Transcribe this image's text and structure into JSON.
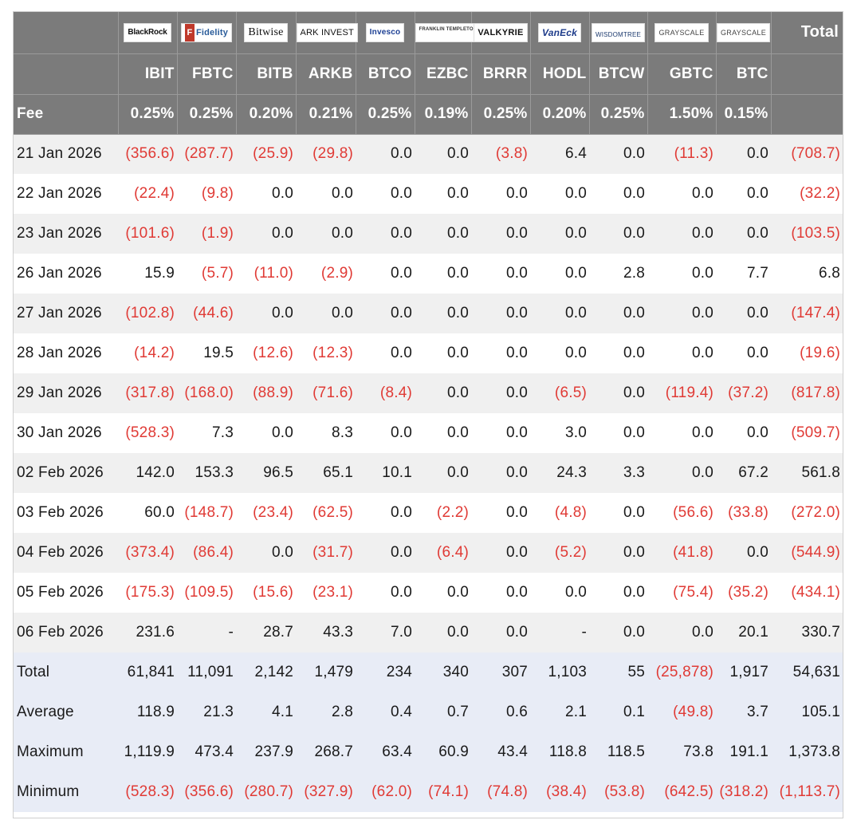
{
  "header": {
    "total_label": "Total",
    "fee_label": "Fee",
    "providers": [
      {
        "name": "BlackRock",
        "icon": "blackrock-logo"
      },
      {
        "name": "Fidelity",
        "icon": "fidelity-logo"
      },
      {
        "name": "Bitwise",
        "icon": "bitwise-logo"
      },
      {
        "name": "ARK INVEST",
        "icon": "ark-invest-logo"
      },
      {
        "name": "Invesco",
        "icon": "invesco-logo"
      },
      {
        "name": "FRANKLIN TEMPLETON",
        "icon": "franklin-templeton-logo"
      },
      {
        "name": "VALKYRIE",
        "icon": "valkyrie-logo"
      },
      {
        "name": "VanEck",
        "icon": "vaneck-logo"
      },
      {
        "name": "WISDOMTREE",
        "icon": "wisdomtree-logo"
      },
      {
        "name": "GRAYSCALE",
        "icon": "grayscale-logo"
      },
      {
        "name": "GRAYSCALE",
        "icon": "grayscale-logo"
      }
    ],
    "tickers": [
      "IBIT",
      "FBTC",
      "BITB",
      "ARKB",
      "BTCO",
      "EZBC",
      "BRRR",
      "HODL",
      "BTCW",
      "GBTC",
      "BTC"
    ],
    "fees": [
      "0.25%",
      "0.25%",
      "0.20%",
      "0.21%",
      "0.25%",
      "0.19%",
      "0.25%",
      "0.20%",
      "0.25%",
      "1.50%",
      "0.15%"
    ]
  },
  "rows": [
    {
      "date": "21 Jan 2026",
      "values": [
        "(356.6)",
        "(287.7)",
        "(25.9)",
        "(29.8)",
        "0.0",
        "0.0",
        "(3.8)",
        "6.4",
        "0.0",
        "(11.3)",
        "0.0",
        "(708.7)"
      ]
    },
    {
      "date": "22 Jan 2026",
      "values": [
        "(22.4)",
        "(9.8)",
        "0.0",
        "0.0",
        "0.0",
        "0.0",
        "0.0",
        "0.0",
        "0.0",
        "0.0",
        "0.0",
        "(32.2)"
      ]
    },
    {
      "date": "23 Jan 2026",
      "values": [
        "(101.6)",
        "(1.9)",
        "0.0",
        "0.0",
        "0.0",
        "0.0",
        "0.0",
        "0.0",
        "0.0",
        "0.0",
        "0.0",
        "(103.5)"
      ]
    },
    {
      "date": "26 Jan 2026",
      "values": [
        "15.9",
        "(5.7)",
        "(11.0)",
        "(2.9)",
        "0.0",
        "0.0",
        "0.0",
        "0.0",
        "2.8",
        "0.0",
        "7.7",
        "6.8"
      ]
    },
    {
      "date": "27 Jan 2026",
      "values": [
        "(102.8)",
        "(44.6)",
        "0.0",
        "0.0",
        "0.0",
        "0.0",
        "0.0",
        "0.0",
        "0.0",
        "0.0",
        "0.0",
        "(147.4)"
      ]
    },
    {
      "date": "28 Jan 2026",
      "values": [
        "(14.2)",
        "19.5",
        "(12.6)",
        "(12.3)",
        "0.0",
        "0.0",
        "0.0",
        "0.0",
        "0.0",
        "0.0",
        "0.0",
        "(19.6)"
      ]
    },
    {
      "date": "29 Jan 2026",
      "values": [
        "(317.8)",
        "(168.0)",
        "(88.9)",
        "(71.6)",
        "(8.4)",
        "0.0",
        "0.0",
        "(6.5)",
        "0.0",
        "(119.4)",
        "(37.2)",
        "(817.8)"
      ]
    },
    {
      "date": "30 Jan 2026",
      "values": [
        "(528.3)",
        "7.3",
        "0.0",
        "8.3",
        "0.0",
        "0.0",
        "0.0",
        "3.0",
        "0.0",
        "0.0",
        "0.0",
        "(509.7)"
      ]
    },
    {
      "date": "02 Feb 2026",
      "values": [
        "142.0",
        "153.3",
        "96.5",
        "65.1",
        "10.1",
        "0.0",
        "0.0",
        "24.3",
        "3.3",
        "0.0",
        "67.2",
        "561.8"
      ]
    },
    {
      "date": "03 Feb 2026",
      "values": [
        "60.0",
        "(148.7)",
        "(23.4)",
        "(62.5)",
        "0.0",
        "(2.2)",
        "0.0",
        "(4.8)",
        "0.0",
        "(56.6)",
        "(33.8)",
        "(272.0)"
      ]
    },
    {
      "date": "04 Feb 2026",
      "values": [
        "(373.4)",
        "(86.4)",
        "0.0",
        "(31.7)",
        "0.0",
        "(6.4)",
        "0.0",
        "(5.2)",
        "0.0",
        "(41.8)",
        "0.0",
        "(544.9)"
      ]
    },
    {
      "date": "05 Feb 2026",
      "values": [
        "(175.3)",
        "(109.5)",
        "(15.6)",
        "(23.1)",
        "0.0",
        "0.0",
        "0.0",
        "0.0",
        "0.0",
        "(75.4)",
        "(35.2)",
        "(434.1)"
      ]
    },
    {
      "date": "06 Feb 2026",
      "values": [
        "231.6",
        "-",
        "28.7",
        "43.3",
        "7.0",
        "0.0",
        "0.0",
        "-",
        "0.0",
        "0.0",
        "20.1",
        "330.7"
      ]
    }
  ],
  "stats": [
    {
      "label": "Total",
      "values": [
        "61,841",
        "11,091",
        "2,142",
        "1,479",
        "234",
        "340",
        "307",
        "1,103",
        "55",
        "(25,878)",
        "1,917",
        "54,631"
      ]
    },
    {
      "label": "Average",
      "values": [
        "118.9",
        "21.3",
        "4.1",
        "2.8",
        "0.4",
        "0.7",
        "0.6",
        "2.1",
        "0.1",
        "(49.8)",
        "3.7",
        "105.1"
      ]
    },
    {
      "label": "Maximum",
      "values": [
        "1,119.9",
        "473.4",
        "237.9",
        "268.7",
        "63.4",
        "60.9",
        "43.4",
        "118.8",
        "118.5",
        "73.8",
        "191.1",
        "1,373.8"
      ]
    },
    {
      "label": "Minimum",
      "values": [
        "(528.3)",
        "(356.6)",
        "(280.7)",
        "(327.9)",
        "(62.0)",
        "(74.1)",
        "(74.8)",
        "(38.4)",
        "(53.8)",
        "(642.5)",
        "(318.2)",
        "(1,113.7)"
      ]
    }
  ],
  "colors": {
    "header_bg": "#7b7b7b",
    "negative": "#e03a35",
    "stripe": "#f0f0f0",
    "stats_bg": "#e8ecf6"
  }
}
